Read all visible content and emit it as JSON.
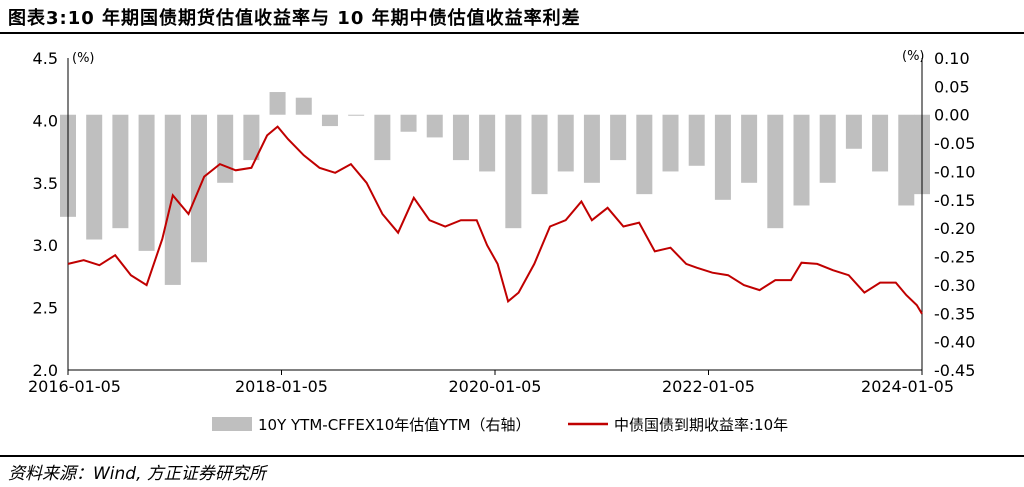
{
  "title": "图表3:10 年期国债期货估值收益率与 10 年期中债估值收益率利差",
  "source": "资料来源：Wind, 方正证券研究所",
  "colors": {
    "bars": "#bfbfbf",
    "line": "#c00000",
    "axis": "#000000"
  },
  "chart_data": {
    "type": "bar+line",
    "xlabel": "",
    "x_ticks": [
      "2016-01-05",
      "2018-01-05",
      "2020-01-05",
      "2022-01-05",
      "2024-01-05"
    ],
    "left_axis": {
      "unit_label": "(%)",
      "ylim": [
        2.0,
        4.5
      ],
      "ticks": [
        "2.0",
        "2.5",
        "3.0",
        "3.5",
        "4.0",
        "4.5"
      ]
    },
    "right_axis": {
      "unit_label": "(%)",
      "ylim": [
        -0.45,
        0.1
      ],
      "ticks": [
        "0.10",
        "0.05",
        "0.00",
        "-0.05",
        "-0.10",
        "-0.15",
        "-0.20",
        "-0.25",
        "-0.30",
        "-0.35",
        "-0.40",
        "-0.45"
      ]
    },
    "legend": {
      "placement": "bottom"
    },
    "series": [
      {
        "name": "10Y YTM-CFFEX10年估值YTM（右轴）",
        "type": "bar",
        "axis": "right",
        "x": [
          2016.0,
          2016.25,
          2016.5,
          2016.75,
          2017.0,
          2017.25,
          2017.5,
          2017.75,
          2018.0,
          2018.25,
          2018.5,
          2018.75,
          2019.0,
          2019.25,
          2019.5,
          2019.75,
          2020.0,
          2020.25,
          2020.5,
          2020.75,
          2021.0,
          2021.25,
          2021.5,
          2021.75,
          2022.0,
          2022.25,
          2022.5,
          2022.75,
          2023.0,
          2023.25,
          2023.5,
          2023.75,
          2024.0,
          2024.15
        ],
        "values": [
          -0.18,
          -0.22,
          -0.2,
          -0.24,
          -0.3,
          -0.26,
          -0.12,
          -0.08,
          0.04,
          0.03,
          -0.02,
          0.0,
          -0.08,
          -0.03,
          -0.04,
          -0.08,
          -0.1,
          -0.2,
          -0.14,
          -0.1,
          -0.12,
          -0.08,
          -0.14,
          -0.1,
          -0.09,
          -0.15,
          -0.12,
          -0.2,
          -0.16,
          -0.12,
          -0.06,
          -0.1,
          -0.16,
          -0.14
        ]
      },
      {
        "name": "中债国债到期收益率:10年",
        "type": "line",
        "axis": "left",
        "x": [
          2016.0,
          2016.15,
          2016.3,
          2016.45,
          2016.6,
          2016.75,
          2016.9,
          2017.0,
          2017.15,
          2017.3,
          2017.45,
          2017.6,
          2017.75,
          2017.9,
          2018.0,
          2018.1,
          2018.25,
          2018.4,
          2018.55,
          2018.7,
          2018.85,
          2019.0,
          2019.15,
          2019.3,
          2019.45,
          2019.6,
          2019.75,
          2019.9,
          2020.0,
          2020.1,
          2020.2,
          2020.3,
          2020.45,
          2020.6,
          2020.75,
          2020.9,
          2021.0,
          2021.15,
          2021.3,
          2021.45,
          2021.6,
          2021.75,
          2021.9,
          2022.0,
          2022.15,
          2022.3,
          2022.45,
          2022.6,
          2022.75,
          2022.9,
          2023.0,
          2023.15,
          2023.3,
          2023.45,
          2023.6,
          2023.75,
          2023.9,
          2024.0,
          2024.1,
          2024.15
        ],
        "values": [
          2.85,
          2.88,
          2.84,
          2.92,
          2.76,
          2.68,
          3.05,
          3.4,
          3.25,
          3.55,
          3.65,
          3.6,
          3.62,
          3.88,
          3.95,
          3.85,
          3.72,
          3.62,
          3.58,
          3.65,
          3.5,
          3.25,
          3.1,
          3.38,
          3.2,
          3.15,
          3.2,
          3.2,
          3.0,
          2.85,
          2.55,
          2.62,
          2.85,
          3.15,
          3.2,
          3.35,
          3.2,
          3.3,
          3.15,
          3.18,
          2.95,
          2.98,
          2.85,
          2.82,
          2.78,
          2.76,
          2.68,
          2.64,
          2.72,
          2.72,
          2.86,
          2.85,
          2.8,
          2.76,
          2.62,
          2.7,
          2.7,
          2.6,
          2.52,
          2.45
        ]
      }
    ]
  }
}
